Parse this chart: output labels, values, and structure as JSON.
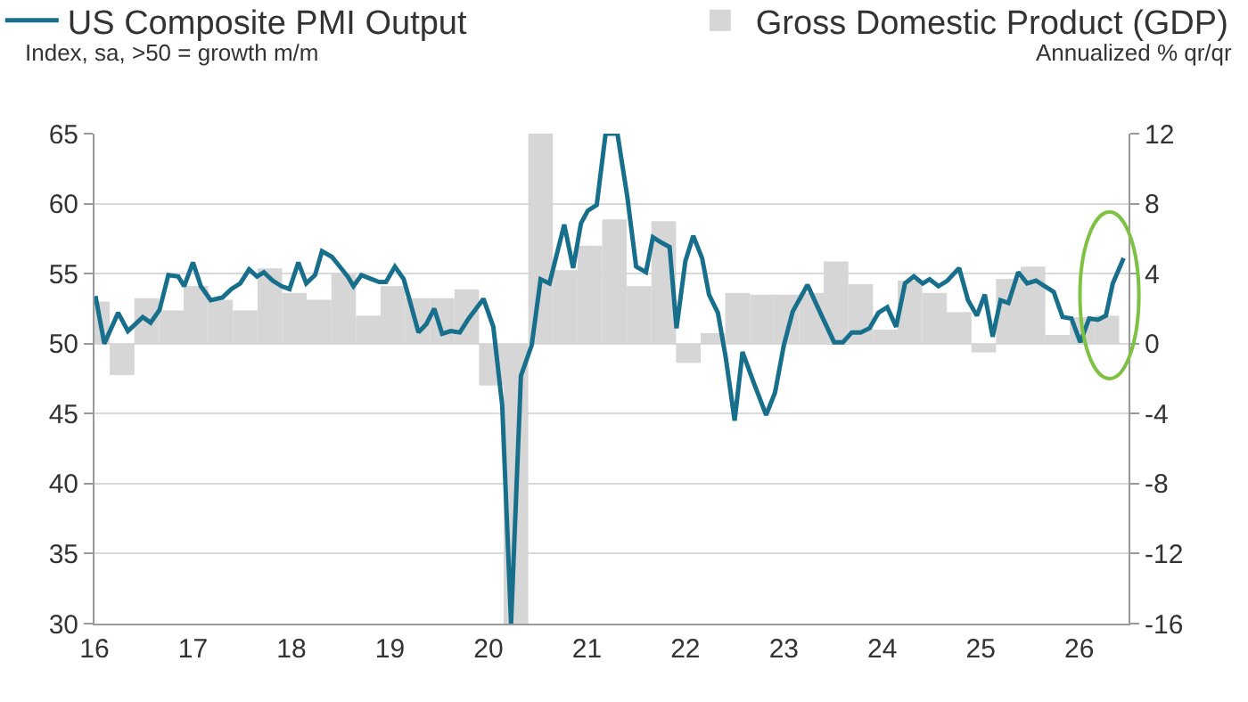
{
  "chart_data": {
    "type": "line",
    "xlabel": null,
    "ylabel": "Index, sa, >50 = growth m/m",
    "y2label": "Annualized % qr/qr",
    "xlim": [
      16,
      26.5
    ],
    "xticks": [
      {
        "value": 16,
        "label": "16"
      },
      {
        "value": 17,
        "label": "17"
      },
      {
        "value": 18,
        "label": "18"
      },
      {
        "value": 19,
        "label": "19"
      },
      {
        "value": 20,
        "label": "20"
      },
      {
        "value": 21,
        "label": "21"
      },
      {
        "value": 22,
        "label": "22"
      },
      {
        "value": 23,
        "label": "23"
      },
      {
        "value": 24,
        "label": "24"
      },
      {
        "value": 25,
        "label": "25"
      },
      {
        "value": 26,
        "label": "26"
      }
    ],
    "ylim": [
      30,
      65
    ],
    "yticks": [
      30,
      35,
      40,
      45,
      50,
      55,
      60,
      65
    ],
    "y2lim": [
      -16,
      12
    ],
    "y2ticks": [
      -16,
      -12,
      -8,
      -4,
      0,
      4,
      8,
      12
    ],
    "grid": "y",
    "legend": "top",
    "marker": "none",
    "line_style": "solid",
    "series": [
      {
        "name": "Gross Domestic Product (GDP)",
        "type": "bar",
        "axis": "y2",
        "color": "#d6d6d6",
        "x": [
          16.03,
          16.28,
          16.53,
          16.78,
          17.03,
          17.28,
          17.53,
          17.78,
          18.03,
          18.28,
          18.53,
          18.78,
          19.03,
          19.28,
          19.53,
          19.78,
          20.03,
          20.28,
          20.53,
          20.78,
          21.03,
          21.28,
          21.53,
          21.78,
          22.03,
          22.28,
          22.53,
          22.78,
          23.03,
          23.28,
          23.53,
          23.78,
          24.03,
          24.28,
          24.53,
          24.78,
          25.03,
          25.28,
          25.53,
          25.78,
          26.03,
          26.28
        ],
        "values": [
          2.4,
          -1.8,
          2.6,
          1.9,
          3.3,
          2.5,
          1.9,
          4.3,
          2.9,
          2.5,
          4.0,
          1.6,
          3.3,
          2.6,
          2.6,
          3.1,
          -2.4,
          -16,
          12,
          4.2,
          5.6,
          7.1,
          3.3,
          7.0,
          -1.1,
          0.6,
          2.9,
          2.8,
          2.8,
          2.9,
          4.7,
          3.4,
          0.8,
          3.6,
          2.9,
          1.8,
          -0.5,
          3.7,
          4.4,
          0.5,
          1.5,
          1.6
        ]
      },
      {
        "name": "US Composite PMI Output",
        "axis": "y",
        "color": "#176f8c",
        "x": [
          16.01,
          16.1,
          16.24,
          16.34,
          16.49,
          16.57,
          16.66,
          16.75,
          16.85,
          16.91,
          17.0,
          17.08,
          17.18,
          17.3,
          17.39,
          17.48,
          17.57,
          17.65,
          17.72,
          17.81,
          17.9,
          17.98,
          18.07,
          18.15,
          18.24,
          18.31,
          18.41,
          18.48,
          18.57,
          18.63,
          18.71,
          18.78,
          18.89,
          18.96,
          19.05,
          19.14,
          19.2,
          19.29,
          19.37,
          19.45,
          19.53,
          19.62,
          19.71,
          19.8,
          19.95,
          20.05,
          20.14,
          20.23,
          20.33,
          20.44,
          20.53,
          20.62,
          20.77,
          20.86,
          20.94,
          21.01,
          21.1,
          21.19,
          21.31,
          21.41,
          21.5,
          21.6,
          21.67,
          21.76,
          21.84,
          21.91,
          22.0,
          22.08,
          22.17,
          22.24,
          22.33,
          22.41,
          22.5,
          22.58,
          22.7,
          22.82,
          22.91,
          23.0,
          23.09,
          23.24,
          23.37,
          23.51,
          23.6,
          23.69,
          23.78,
          23.87,
          23.96,
          24.05,
          24.14,
          24.23,
          24.32,
          24.41,
          24.48,
          24.57,
          24.66,
          24.78,
          24.87,
          24.96,
          25.04,
          25.12,
          25.2,
          25.28,
          25.38,
          25.47,
          25.56,
          25.65,
          25.74,
          25.83,
          25.92,
          26.01,
          26.1,
          26.19,
          26.27,
          26.34,
          26.45
        ],
        "values": [
          53.4,
          50.0,
          52.2,
          50.9,
          51.9,
          51.5,
          52.4,
          54.9,
          54.8,
          54.1,
          55.8,
          54.1,
          53.1,
          53.3,
          53.9,
          54.3,
          55.3,
          54.8,
          55.1,
          54.5,
          54.1,
          53.9,
          55.8,
          54.3,
          54.9,
          56.6,
          56.2,
          55.6,
          54.8,
          54.1,
          54.9,
          54.7,
          54.4,
          54.4,
          55.5,
          54.6,
          53.1,
          50.8,
          51.4,
          52.5,
          50.7,
          50.9,
          50.8,
          51.8,
          53.2,
          51.2,
          45.6,
          30,
          47.7,
          49.9,
          54.6,
          54.3,
          58.5,
          55.4,
          58.6,
          59.5,
          59.9,
          65,
          65,
          60.5,
          55.5,
          55.1,
          57.6,
          57.2,
          56.9,
          51.1,
          55.9,
          57.7,
          56.1,
          53.5,
          52.2,
          49.0,
          44.5,
          49.4,
          47.1,
          44.9,
          46.5,
          49.9,
          52.3,
          54.2,
          52.2,
          50.1,
          50.1,
          50.8,
          50.8,
          51.1,
          52.2,
          52.6,
          51.2,
          54.3,
          54.8,
          54.3,
          54.6,
          54.1,
          54.5,
          55.4,
          53.1,
          52.0,
          53.5,
          50.5,
          53.1,
          52.9,
          55.1,
          54.3,
          54.5,
          54.1,
          53.7,
          51.9,
          51.8,
          50.1,
          51.8,
          51.7,
          52.0,
          54.3,
          56.1
        ]
      }
    ]
  }
}
